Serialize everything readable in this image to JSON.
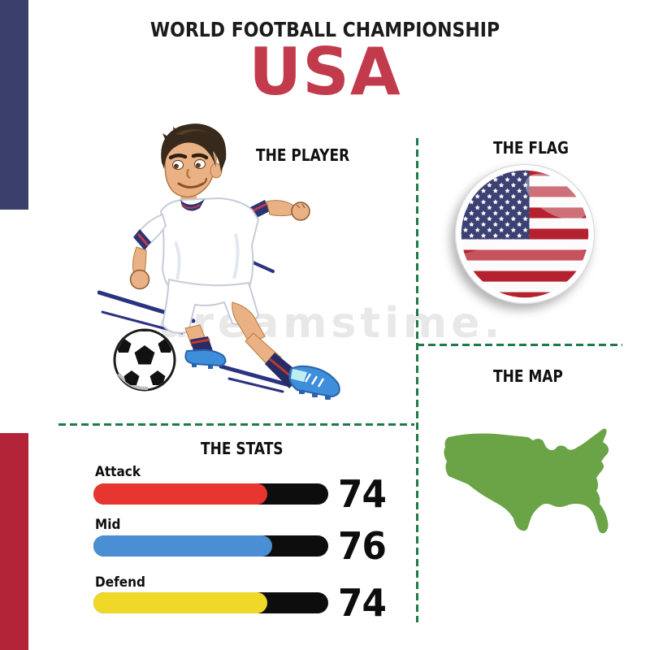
{
  "header": {
    "competition": "WORLD FOOTBALL CHAMPIONSHIP",
    "country": "USA"
  },
  "sections": {
    "player_label": "THE PLAYER",
    "flag_label": "THE FLAG",
    "map_label": "THE MAP"
  },
  "chart_data": {
    "type": "bar",
    "title": "THE STATS",
    "orientation": "horizontal",
    "categories": [
      "Attack",
      "Mid",
      "Defend"
    ],
    "values": [
      74,
      76,
      74
    ],
    "max": 100,
    "bar_colors": [
      "#e73530",
      "#4a8fd3",
      "#f0d829"
    ],
    "track_color": "#0d0d0d",
    "legend": "none",
    "grid": false
  },
  "icons": {
    "player": "soccer-player-cartoon",
    "ball": "soccer-ball",
    "flag": "usa-flag-round-badge",
    "map": "usa-map-silhouette"
  },
  "colors": {
    "accent_red_title": "#c23b4d",
    "title_black": "#1b1b1b",
    "left_bar_navy": "#3b3f6b",
    "left_bar_red": "#b32438",
    "divider_green": "#1e7a4a",
    "map_green": "#6aa447",
    "flag_stripe_red": "#b5222f",
    "flag_canton_navy": "#3c4173"
  },
  "watermark": {
    "text": "dreamstime."
  }
}
